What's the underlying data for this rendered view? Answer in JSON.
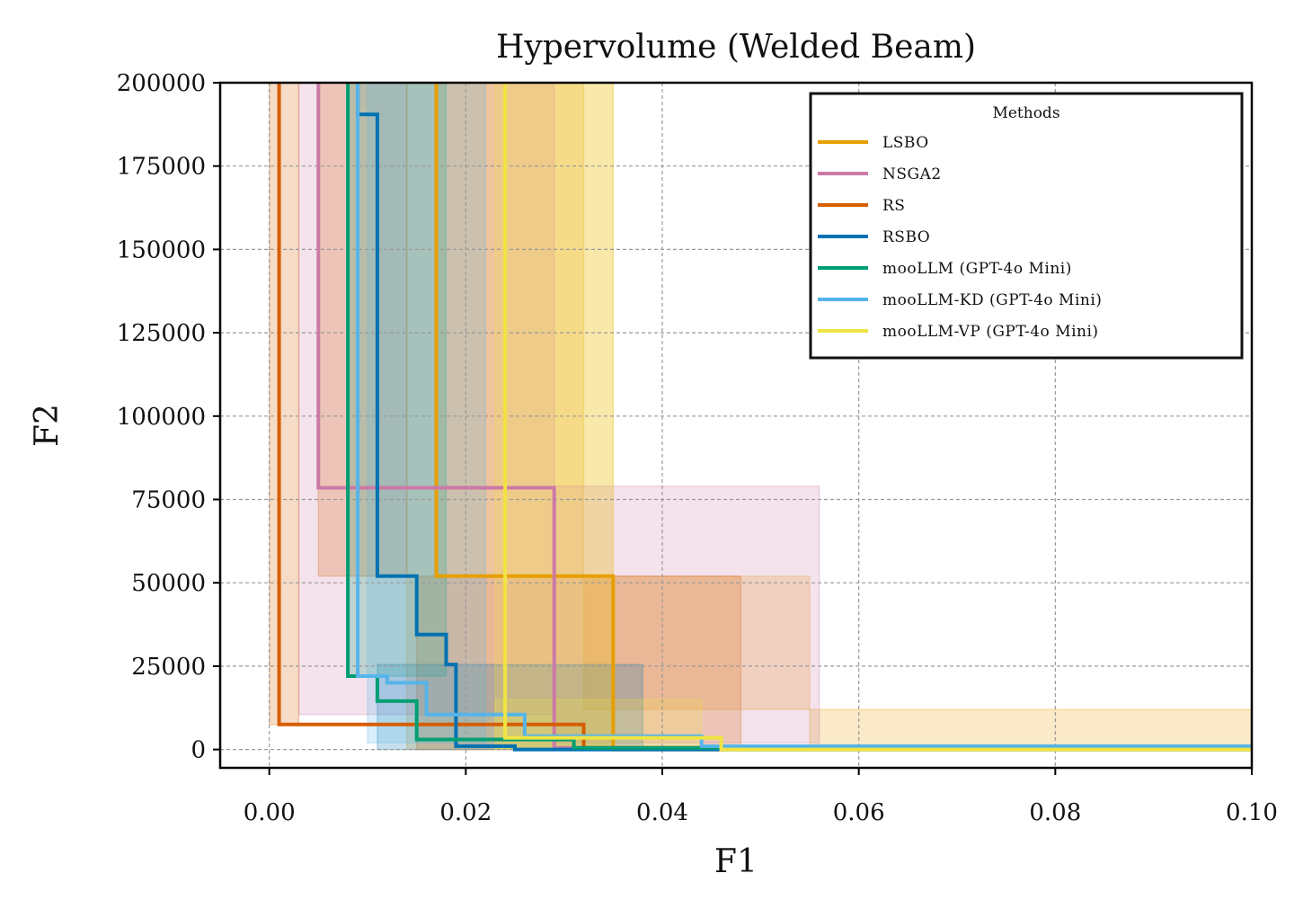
{
  "chart_data": {
    "type": "line",
    "title": "Hypervolume (Welded Beam)",
    "xlabel": "F1",
    "ylabel": "F2",
    "xlim": [
      -0.005,
      0.1
    ],
    "ylim": [
      -5500,
      200000
    ],
    "xticks": [
      0.0,
      0.02,
      0.04,
      0.06,
      0.08,
      0.1
    ],
    "xtick_labels": [
      "0.00",
      "0.02",
      "0.04",
      "0.06",
      "0.08",
      "0.10"
    ],
    "yticks": [
      0,
      25000,
      50000,
      75000,
      100000,
      125000,
      150000,
      175000,
      200000
    ],
    "ytick_labels": [
      "0",
      "25000",
      "50000",
      "75000",
      "100000",
      "125000",
      "150000",
      "175000",
      "200000"
    ],
    "grid": true,
    "legend": {
      "title": "Methods",
      "position": "top-right"
    },
    "series": [
      {
        "name": "LSBO",
        "color": "#E69F00",
        "steps": [
          [
            0.017,
            200000
          ],
          [
            0.017,
            52000
          ],
          [
            0.035,
            52000
          ],
          [
            0.035,
            0
          ],
          [
            0.1,
            0
          ]
        ],
        "bands": [
          [
            0.014,
            200000,
            0.035,
            0
          ],
          [
            0.017,
            200000,
            0.032,
            52000
          ],
          [
            0.032,
            52000,
            0.055,
            12000
          ],
          [
            0.055,
            12000,
            0.1,
            0
          ]
        ]
      },
      {
        "name": "NSGA2",
        "color": "#CC79A7",
        "steps": [
          [
            0.005,
            200000
          ],
          [
            0.005,
            78500
          ],
          [
            0.029,
            78500
          ],
          [
            0.029,
            500
          ],
          [
            0.1,
            500
          ]
        ],
        "bands": [
          [
            0.003,
            200000,
            0.029,
            10500
          ],
          [
            0.029,
            79000,
            0.056,
            2000
          ]
        ]
      },
      {
        "name": "RS",
        "color": "#D55E00",
        "steps": [
          [
            0.001,
            200000
          ],
          [
            0.001,
            7500
          ],
          [
            0.032,
            7500
          ],
          [
            0.032,
            500
          ],
          [
            0.1,
            500
          ]
        ],
        "bands": [
          [
            0.0,
            200000,
            0.003,
            7500
          ],
          [
            0.005,
            200000,
            0.014,
            52000
          ],
          [
            0.015,
            52000,
            0.048,
            0
          ]
        ]
      },
      {
        "name": "RSBO",
        "color": "#0072B2",
        "steps": [
          [
            0.009,
            200000
          ],
          [
            0.009,
            190500
          ],
          [
            0.011,
            190500
          ],
          [
            0.011,
            52000
          ],
          [
            0.015,
            52000
          ],
          [
            0.015,
            34500
          ],
          [
            0.018,
            34500
          ],
          [
            0.018,
            25500
          ],
          [
            0.019,
            25500
          ],
          [
            0.019,
            1000
          ],
          [
            0.025,
            1000
          ],
          [
            0.025,
            0
          ],
          [
            0.1,
            0
          ]
        ],
        "bands": [
          [
            0.011,
            25500,
            0.038,
            0
          ]
        ]
      },
      {
        "name": "mooLLM (GPT-4o Mini)",
        "color": "#009E73",
        "steps": [
          [
            0.008,
            200000
          ],
          [
            0.008,
            22000
          ],
          [
            0.011,
            22000
          ],
          [
            0.011,
            14500
          ],
          [
            0.015,
            14500
          ],
          [
            0.015,
            3000
          ],
          [
            0.031,
            3000
          ],
          [
            0.031,
            500
          ],
          [
            0.1,
            500
          ]
        ],
        "bands": [
          [
            0.008,
            200000,
            0.018,
            22000
          ]
        ]
      },
      {
        "name": "mooLLM-KD (GPT-4o Mini)",
        "color": "#56B4E9",
        "steps": [
          [
            0.009,
            200000
          ],
          [
            0.009,
            22000
          ],
          [
            0.012,
            22000
          ],
          [
            0.012,
            20000
          ],
          [
            0.016,
            20000
          ],
          [
            0.016,
            10500
          ],
          [
            0.026,
            10500
          ],
          [
            0.026,
            4000
          ],
          [
            0.044,
            4000
          ],
          [
            0.044,
            1000
          ],
          [
            0.1,
            1000
          ]
        ],
        "bands": [
          [
            0.01,
            200000,
            0.022,
            2000
          ]
        ]
      },
      {
        "name": "mooLLM-VP (GPT-4o Mini)",
        "color": "#F0E442",
        "steps": [
          [
            0.024,
            200000
          ],
          [
            0.024,
            3500
          ],
          [
            0.046,
            3500
          ],
          [
            0.046,
            0
          ],
          [
            0.1,
            0
          ]
        ],
        "bands": [
          [
            0.023,
            200000,
            0.035,
            0
          ],
          [
            0.023,
            15000,
            0.044,
            0
          ]
        ]
      }
    ]
  }
}
